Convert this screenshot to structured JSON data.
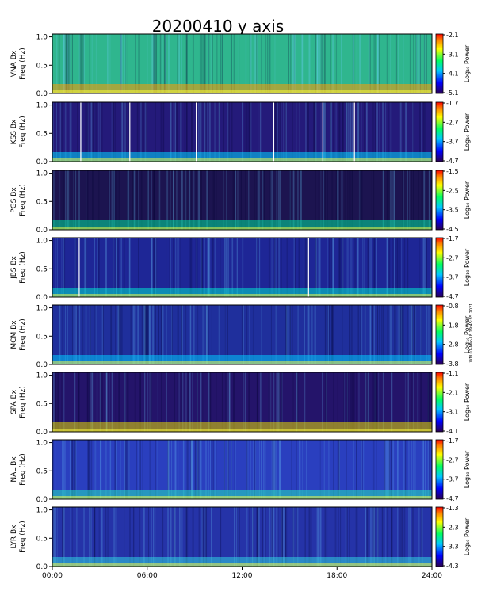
{
  "chart_data": {
    "type": "heatmap",
    "title": "20200410  y  axis",
    "colorbar_label": "Log₁₀ Power",
    "ylabel_suffix": "Freq (Hz)",
    "x_axis": {
      "range_hours": [
        0,
        24
      ],
      "ticks": [
        "00:00",
        "06:00",
        "12:00",
        "18:00",
        "24:00"
      ]
    },
    "y_axis": {
      "range_hz": [
        0,
        1.05
      ],
      "ticks": [
        "0.0",
        "0.5",
        "1.0"
      ]
    },
    "side_note": "WM 01-Mar-18 19:45:35 2021",
    "panels": [
      {
        "station": "VNA Bx",
        "cbar_ticks": [
          "-2.1",
          "-3.1",
          "-4.1",
          "-5.1"
        ],
        "dropouts_hours": []
      },
      {
        "station": "KSS Bx",
        "cbar_ticks": [
          "-1.7",
          "-2.7",
          "-3.7",
          "-4.7"
        ],
        "dropouts_hours": [
          1.8,
          4.9,
          9.1,
          14.0,
          17.1,
          19.1
        ]
      },
      {
        "station": "PGS Bx",
        "cbar_ticks": [
          "-1.5",
          "-2.5",
          "-3.5",
          "-4.5"
        ],
        "dropouts_hours": []
      },
      {
        "station": "JBS Bx",
        "cbar_ticks": [
          "-1.7",
          "-2.7",
          "-3.7",
          "-4.7"
        ],
        "dropouts_hours": [
          1.7,
          16.2
        ]
      },
      {
        "station": "MCM Bx",
        "cbar_ticks": [
          "-0.8",
          "-1.8",
          "-2.8",
          "-3.8"
        ],
        "dropouts_hours": []
      },
      {
        "station": "SPA Bx",
        "cbar_ticks": [
          "-1.1",
          "-2.1",
          "-3.1",
          "-4.1"
        ],
        "dropouts_hours": []
      },
      {
        "station": "NAL Bx",
        "cbar_ticks": [
          "-1.7",
          "-2.7",
          "-3.7",
          "-4.7"
        ],
        "dropouts_hours": []
      },
      {
        "station": "LYR Bx",
        "cbar_ticks": [
          "-1.3",
          "-2.3",
          "-3.3",
          "-4.3"
        ],
        "dropouts_hours": []
      }
    ]
  }
}
